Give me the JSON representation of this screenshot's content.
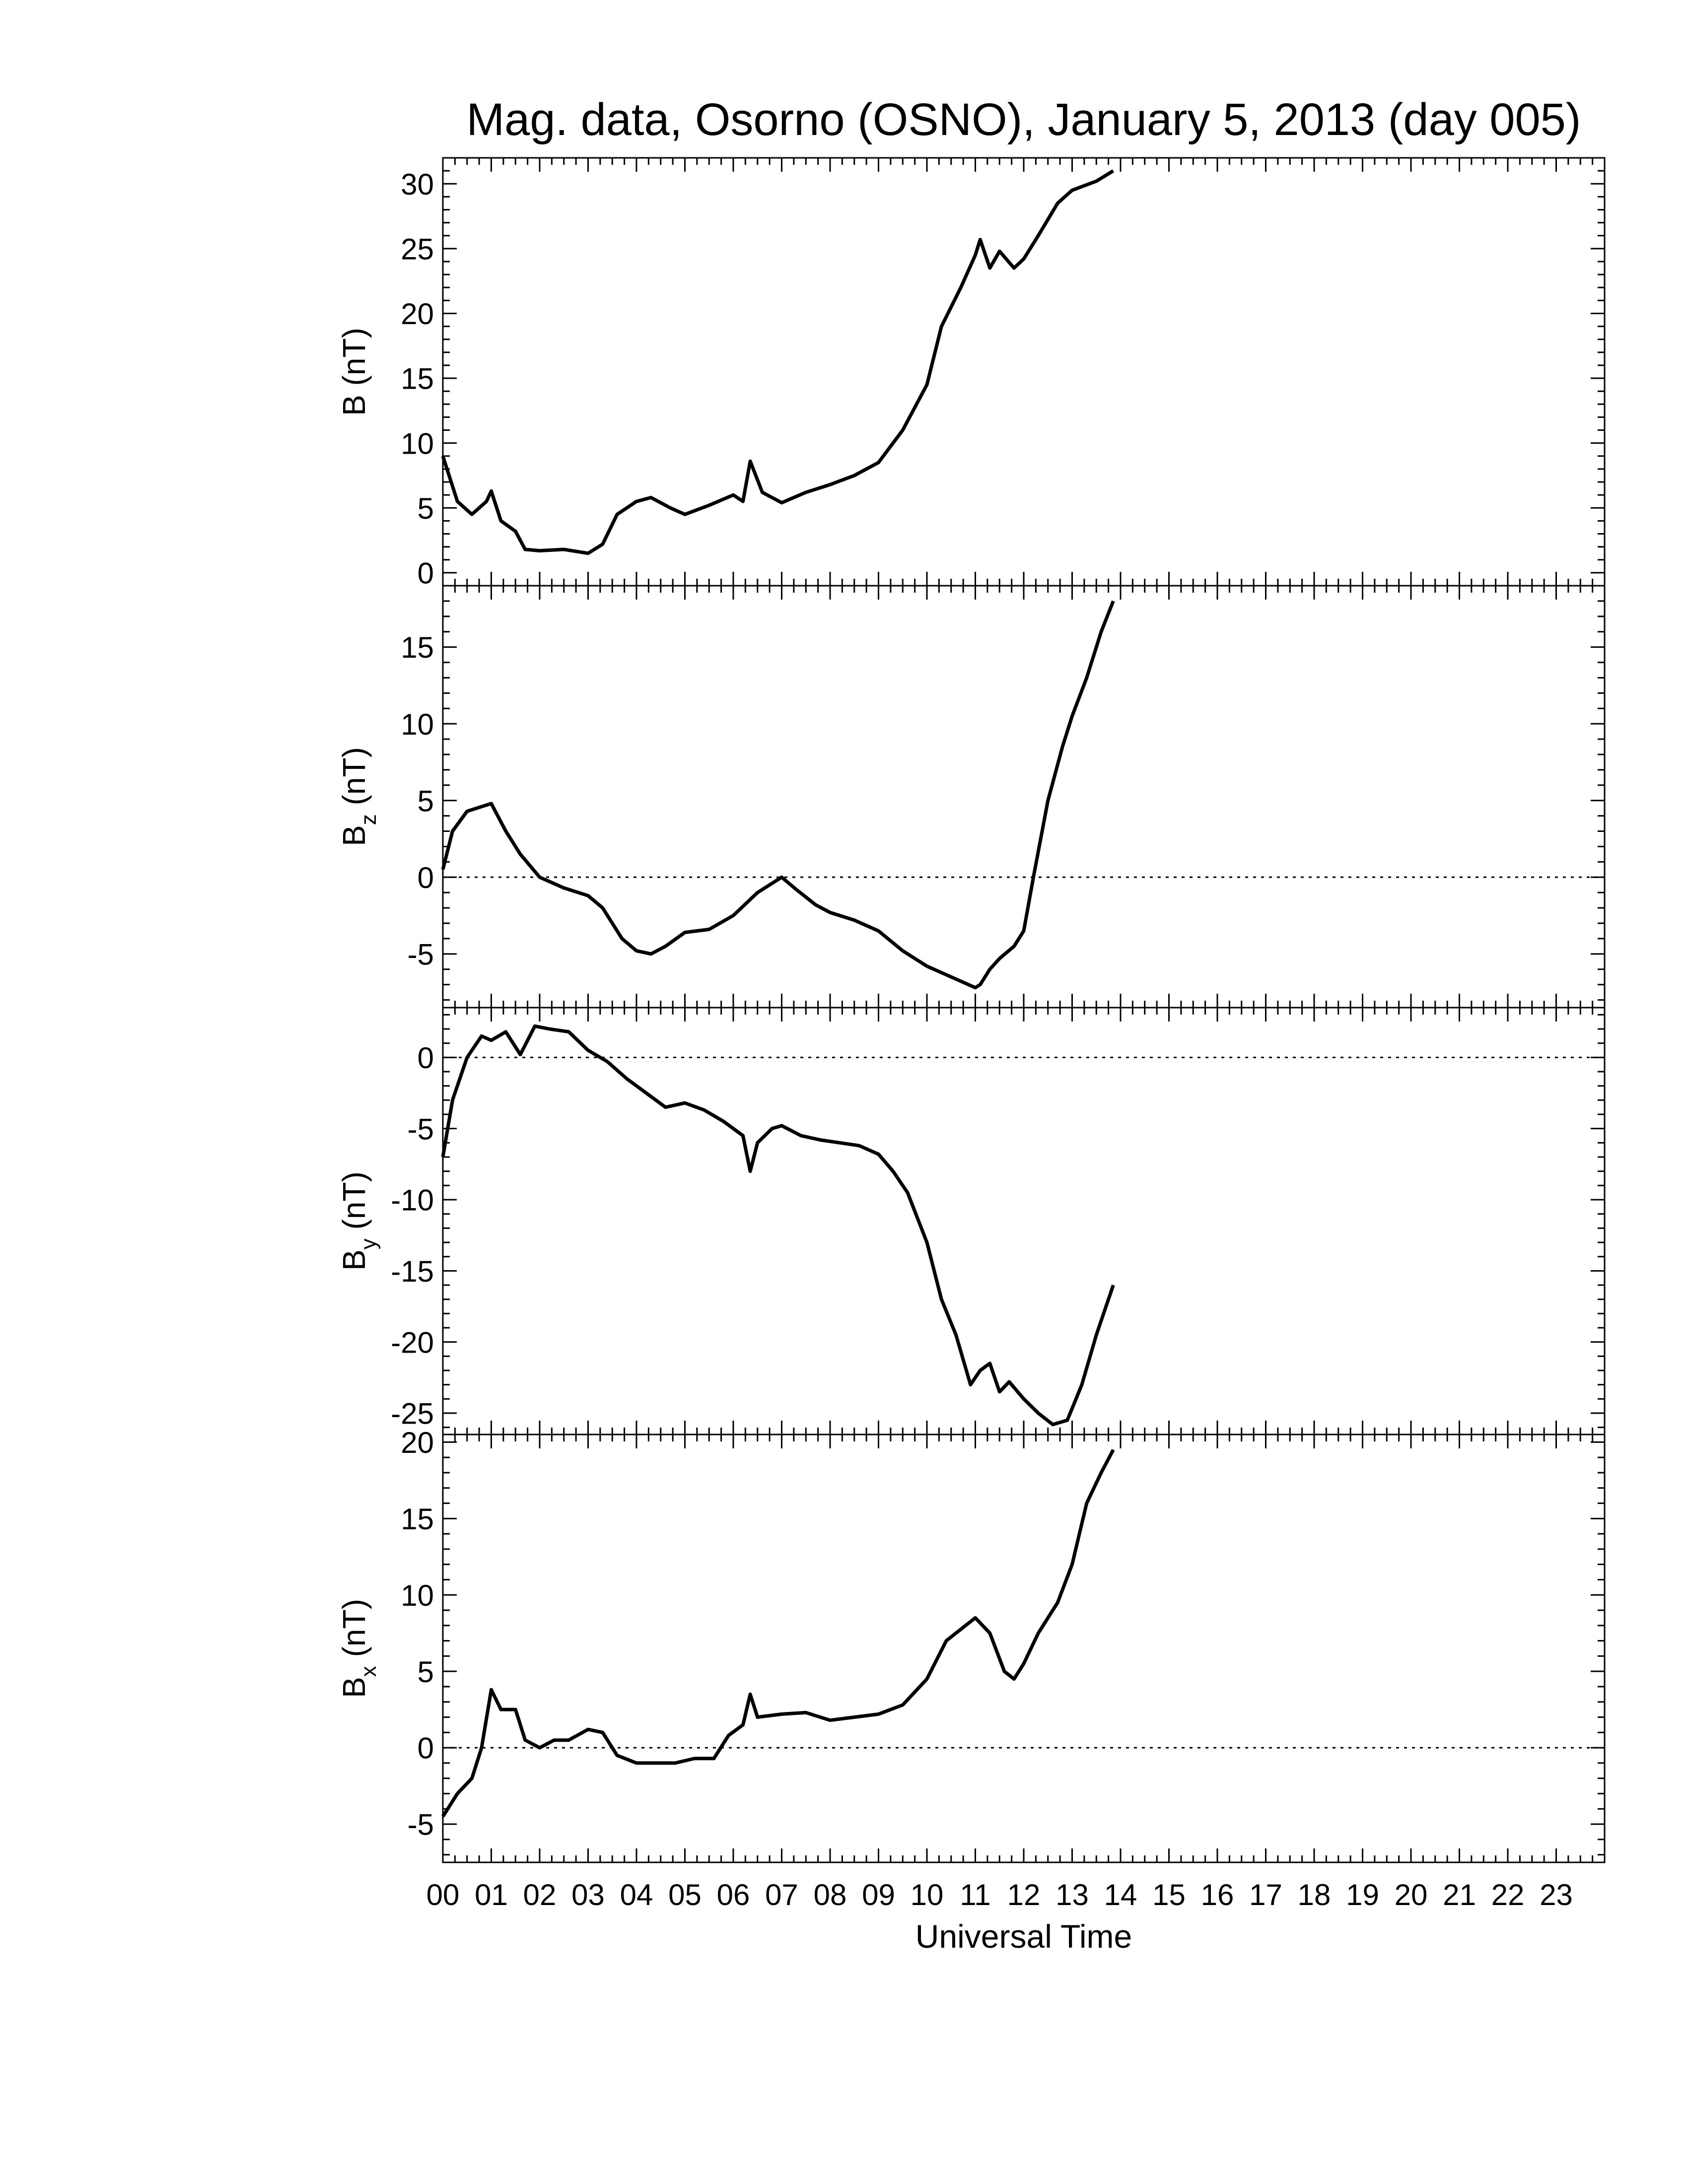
{
  "title": "Mag. data, Osorno (OSNO), January 5, 2013 (day 005)",
  "colors": {
    "trace": "#000000",
    "background": "#ffffff",
    "zero_line": "#000000"
  },
  "chart_data": [
    {
      "type": "line",
      "ylabel": "B (nT)",
      "ylabel_base": "B",
      "ylabel_sub": "",
      "ylabel_unit": "(nT)",
      "ylim": [
        -1,
        32
      ],
      "yticks": [
        0,
        5,
        10,
        15,
        20,
        25,
        30
      ],
      "ytick_labels": [
        "0",
        "5",
        "10",
        "15",
        "20",
        "25",
        "30"
      ],
      "zero_line": false,
      "x": [
        0,
        0.3,
        0.6,
        0.9,
        1.0,
        1.2,
        1.5,
        1.7,
        2.0,
        2.5,
        3.0,
        3.3,
        3.6,
        4.0,
        4.3,
        4.7,
        5.0,
        5.5,
        6.0,
        6.2,
        6.35,
        6.6,
        7.0,
        7.5,
        8.0,
        8.5,
        9.0,
        9.5,
        10.0,
        10.3,
        10.7,
        11.0,
        11.1,
        11.3,
        11.5,
        11.8,
        12.0,
        12.3,
        12.7,
        13.0,
        13.5,
        13.85
      ],
      "y": [
        9,
        5.5,
        4.5,
        5.5,
        6.3,
        4,
        3.2,
        1.8,
        1.7,
        1.8,
        1.5,
        2.2,
        4.5,
        5.5,
        5.8,
        5,
        4.5,
        5.2,
        6,
        5.5,
        8.6,
        6.2,
        5.4,
        6.2,
        6.8,
        7.5,
        8.5,
        11,
        14.5,
        19,
        22,
        24.5,
        25.7,
        23.5,
        24.8,
        23.5,
        24.2,
        26,
        28.5,
        29.5,
        30.2,
        31
      ]
    },
    {
      "type": "line",
      "ylabel": "Bz (nT)",
      "ylabel_base": "B",
      "ylabel_sub": "z",
      "ylabel_unit": "(nT)",
      "ylim": [
        -8.5,
        19
      ],
      "yticks": [
        -5,
        0,
        5,
        10,
        15
      ],
      "ytick_labels": [
        "-5",
        "0",
        "5",
        "10",
        "15"
      ],
      "zero_line": true,
      "x": [
        0,
        0.2,
        0.5,
        0.8,
        1.0,
        1.3,
        1.6,
        2.0,
        2.5,
        3.0,
        3.3,
        3.7,
        4.0,
        4.3,
        4.6,
        5.0,
        5.5,
        6.0,
        6.5,
        7.0,
        7.3,
        7.7,
        8.0,
        8.5,
        9.0,
        9.5,
        10.0,
        10.5,
        11.0,
        11.1,
        11.3,
        11.5,
        11.8,
        12.0,
        12.2,
        12.5,
        12.8,
        13.0,
        13.3,
        13.6,
        13.85
      ],
      "y": [
        0.5,
        3,
        4.3,
        4.6,
        4.8,
        3,
        1.5,
        0,
        -0.7,
        -1.2,
        -2,
        -4,
        -4.8,
        -5,
        -4.5,
        -3.6,
        -3.4,
        -2.5,
        -1,
        0,
        -0.8,
        -1.8,
        -2.3,
        -2.8,
        -3.5,
        -4.8,
        -5.8,
        -6.5,
        -7.2,
        -7,
        -6,
        -5.3,
        -4.5,
        -3.5,
        0,
        5,
        8.5,
        10.5,
        13,
        16,
        18
      ]
    },
    {
      "type": "line",
      "ylabel": "By (nT)",
      "ylabel_base": "B",
      "ylabel_sub": "y",
      "ylabel_unit": "(nT)",
      "ylim": [
        -26.5,
        3.5
      ],
      "yticks": [
        -25,
        -20,
        -15,
        -10,
        -5,
        0
      ],
      "ytick_labels": [
        "-25",
        "-20",
        "-15",
        "-10",
        "-5",
        "0"
      ],
      "zero_line": true,
      "x": [
        0,
        0.2,
        0.5,
        0.8,
        1.0,
        1.3,
        1.6,
        1.9,
        2.2,
        2.6,
        3.0,
        3.4,
        3.8,
        4.2,
        4.6,
        5.0,
        5.4,
        5.8,
        6.2,
        6.35,
        6.5,
        6.8,
        7.0,
        7.4,
        7.8,
        8.2,
        8.6,
        9.0,
        9.3,
        9.6,
        10.0,
        10.3,
        10.6,
        10.9,
        11.1,
        11.3,
        11.5,
        11.7,
        12.0,
        12.3,
        12.6,
        12.9,
        13.2,
        13.5,
        13.85
      ],
      "y": [
        -7,
        -3,
        0,
        1.5,
        1.2,
        1.8,
        0.2,
        2.2,
        2,
        1.8,
        0.5,
        -0.3,
        -1.5,
        -2.5,
        -3.5,
        -3.2,
        -3.7,
        -4.5,
        -5.5,
        -8,
        -6,
        -5,
        -4.8,
        -5.5,
        -5.8,
        -6,
        -6.2,
        -6.8,
        -8,
        -9.5,
        -13,
        -17,
        -19.5,
        -23,
        -22,
        -21.5,
        -23.5,
        -22.8,
        -24,
        -25,
        -25.8,
        -25.5,
        -23,
        -19.5,
        -16
      ]
    },
    {
      "type": "line",
      "ylabel": "Bx (nT)",
      "ylabel_base": "B",
      "ylabel_sub": "x",
      "ylabel_unit": "(nT)",
      "ylim": [
        -7.5,
        20.5
      ],
      "yticks": [
        -5,
        0,
        5,
        10,
        15,
        20
      ],
      "ytick_labels": [
        "-5",
        "0",
        "5",
        "10",
        "15",
        "20"
      ],
      "zero_line": true,
      "x": [
        0,
        0.3,
        0.6,
        0.8,
        1.0,
        1.2,
        1.5,
        1.7,
        2.0,
        2.3,
        2.6,
        3.0,
        3.3,
        3.6,
        4.0,
        4.4,
        4.8,
        5.2,
        5.6,
        5.9,
        6.2,
        6.35,
        6.5,
        7.0,
        7.5,
        8.0,
        8.5,
        9.0,
        9.5,
        10.0,
        10.4,
        10.8,
        11.0,
        11.3,
        11.6,
        11.8,
        12.0,
        12.3,
        12.7,
        13.0,
        13.3,
        13.6,
        13.85
      ],
      "y": [
        -4.5,
        -3,
        -2,
        0,
        3.8,
        2.5,
        2.5,
        0.5,
        0,
        0.5,
        0.5,
        1.2,
        1,
        -0.5,
        -1,
        -1,
        -1,
        -0.7,
        -0.7,
        0.8,
        1.5,
        3.5,
        2,
        2.2,
        2.3,
        1.8,
        2,
        2.2,
        2.8,
        4.5,
        7,
        8,
        8.5,
        7.5,
        5,
        4.5,
        5.5,
        7.5,
        9.5,
        12,
        16,
        18,
        19.5
      ]
    }
  ],
  "x_axis": {
    "label": "Universal Time",
    "xlim": [
      0,
      24
    ],
    "tick_labels": [
      "00",
      "01",
      "02",
      "03",
      "04",
      "05",
      "06",
      "07",
      "08",
      "09",
      "10",
      "11",
      "12",
      "13",
      "14",
      "15",
      "16",
      "17",
      "18",
      "19",
      "20",
      "21",
      "22",
      "23"
    ]
  }
}
